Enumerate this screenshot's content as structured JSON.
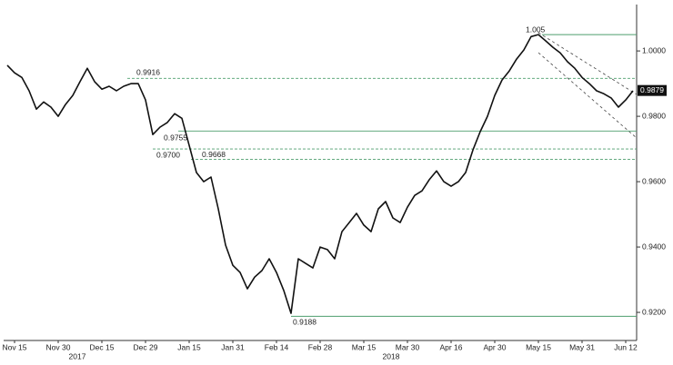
{
  "chart_data": {
    "type": "line",
    "categories": [
      null,
      "Nov 15",
      null,
      null,
      null,
      null,
      null,
      "Nov 30",
      null,
      null,
      null,
      null,
      null,
      "Dec 15",
      null,
      null,
      null,
      null,
      null,
      "Dec 29",
      null,
      null,
      null,
      null,
      null,
      "Jan 15",
      null,
      null,
      null,
      null,
      null,
      "Jan 31",
      null,
      null,
      null,
      null,
      null,
      "Feb 14",
      null,
      null,
      null,
      null,
      null,
      "Feb 28",
      null,
      null,
      null,
      null,
      null,
      "Mar 15",
      null,
      null,
      null,
      null,
      null,
      "Mar 30",
      null,
      null,
      null,
      null,
      null,
      "Apr 16",
      null,
      null,
      null,
      null,
      null,
      "Apr 30",
      null,
      null,
      null,
      null,
      null,
      "May 15",
      null,
      null,
      null,
      null,
      null,
      "May 31",
      null,
      null,
      null,
      null,
      null,
      "Jun 12",
      null
    ],
    "years": [
      "2017",
      "2018"
    ],
    "values": [
      0.9956,
      0.9933,
      0.9919,
      0.9878,
      0.9822,
      0.9844,
      0.9828,
      0.98,
      0.9836,
      0.9864,
      0.9906,
      0.9947,
      0.9906,
      0.9883,
      0.9892,
      0.9878,
      0.9892,
      0.99,
      0.99,
      0.985,
      0.9744,
      0.9767,
      0.9781,
      0.9808,
      0.9794,
      0.9711,
      0.9628,
      0.96,
      0.9614,
      0.9517,
      0.9406,
      0.9344,
      0.9322,
      0.9272,
      0.9308,
      0.9328,
      0.9364,
      0.9322,
      0.9267,
      0.9197,
      0.9364,
      0.935,
      0.9336,
      0.94,
      0.9392,
      0.9364,
      0.9447,
      0.9475,
      0.9503,
      0.9467,
      0.9447,
      0.9517,
      0.9539,
      0.9489,
      0.9475,
      0.9522,
      0.9558,
      0.9572,
      0.9606,
      0.9633,
      0.96,
      0.9586,
      0.96,
      0.9628,
      0.9697,
      0.9753,
      0.98,
      0.9864,
      0.9911,
      0.9939,
      0.9975,
      1.0003,
      1.0044,
      1.005,
      1.0031,
      1.0011,
      0.9994,
      0.9967,
      0.9947,
      0.9919,
      0.99,
      0.9878,
      0.9869,
      0.9856,
      0.9828,
      0.985,
      0.9878
    ],
    "color": "#111111",
    "ylim": [
      0.9114,
      1.0142
    ],
    "yticks": [
      {
        "value": 0.92,
        "label": "0.9200"
      },
      {
        "value": 0.94,
        "label": "0.9400"
      },
      {
        "value": 0.96,
        "label": "0.9600"
      },
      {
        "value": 0.98,
        "label": "0.9800"
      },
      {
        "value": 1.0,
        "label": "1.0000"
      }
    ],
    "levels": [
      {
        "value": 1.005,
        "label": "1.005",
        "style": "solid"
      },
      {
        "value": 0.9916,
        "label": "0.9916",
        "style": "dashed"
      },
      {
        "value": 0.9755,
        "label": "0.9755",
        "style": "solid"
      },
      {
        "value": 0.97,
        "label": "0.9700",
        "style": "dashed"
      },
      {
        "value": 0.9668,
        "label": "0.9668",
        "style": "dashed"
      },
      {
        "value": 0.9188,
        "label": "0.9188",
        "style": "solid"
      }
    ],
    "level_color": "#4e9e6e",
    "last_price": {
      "value": 0.9879,
      "label": "0.9879"
    }
  }
}
